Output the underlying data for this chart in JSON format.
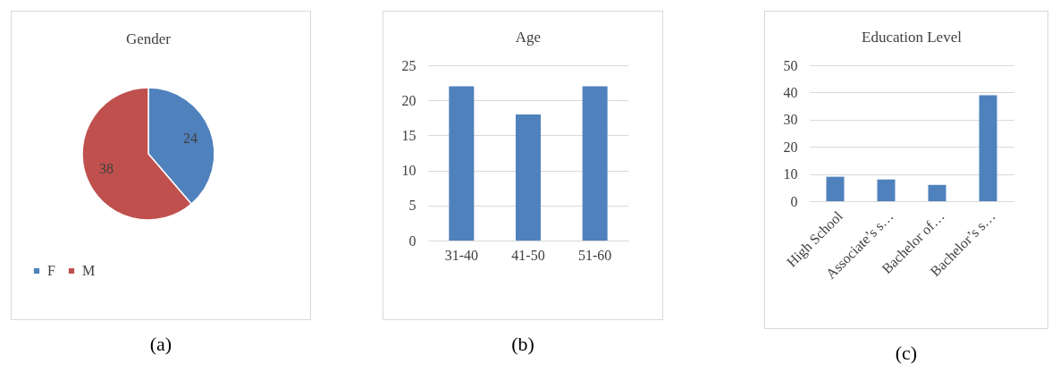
{
  "chart_data": [
    {
      "type": "pie",
      "title": "Gender",
      "categories": [
        "F",
        "M"
      ],
      "values": [
        24,
        38
      ],
      "colors": [
        "#4f81bd",
        "#c0504d"
      ],
      "data_labels": true,
      "legend": "bottom",
      "annotations": [
        "(a)"
      ]
    },
    {
      "type": "bar",
      "title": "Age",
      "categories": [
        "31-40",
        "41-50",
        "51-60"
      ],
      "values": [
        22,
        18,
        22
      ],
      "color": "#4f81bd",
      "ylim": [
        0,
        25
      ],
      "yticks": [
        0,
        5,
        10,
        15,
        20,
        25
      ],
      "grid": "y",
      "annotations": [
        "(b)"
      ]
    },
    {
      "type": "bar",
      "title": "Education Level",
      "categories": [
        "High School",
        "Associate’s s…",
        "Bachelor of…",
        "Bachelor’s s…"
      ],
      "values": [
        9,
        8,
        6,
        39
      ],
      "color": "#4f81bd",
      "ylim": [
        0,
        50
      ],
      "yticks": [
        0,
        10,
        20,
        30,
        40,
        50
      ],
      "grid": "y",
      "annotations": [
        "(c)"
      ]
    }
  ]
}
